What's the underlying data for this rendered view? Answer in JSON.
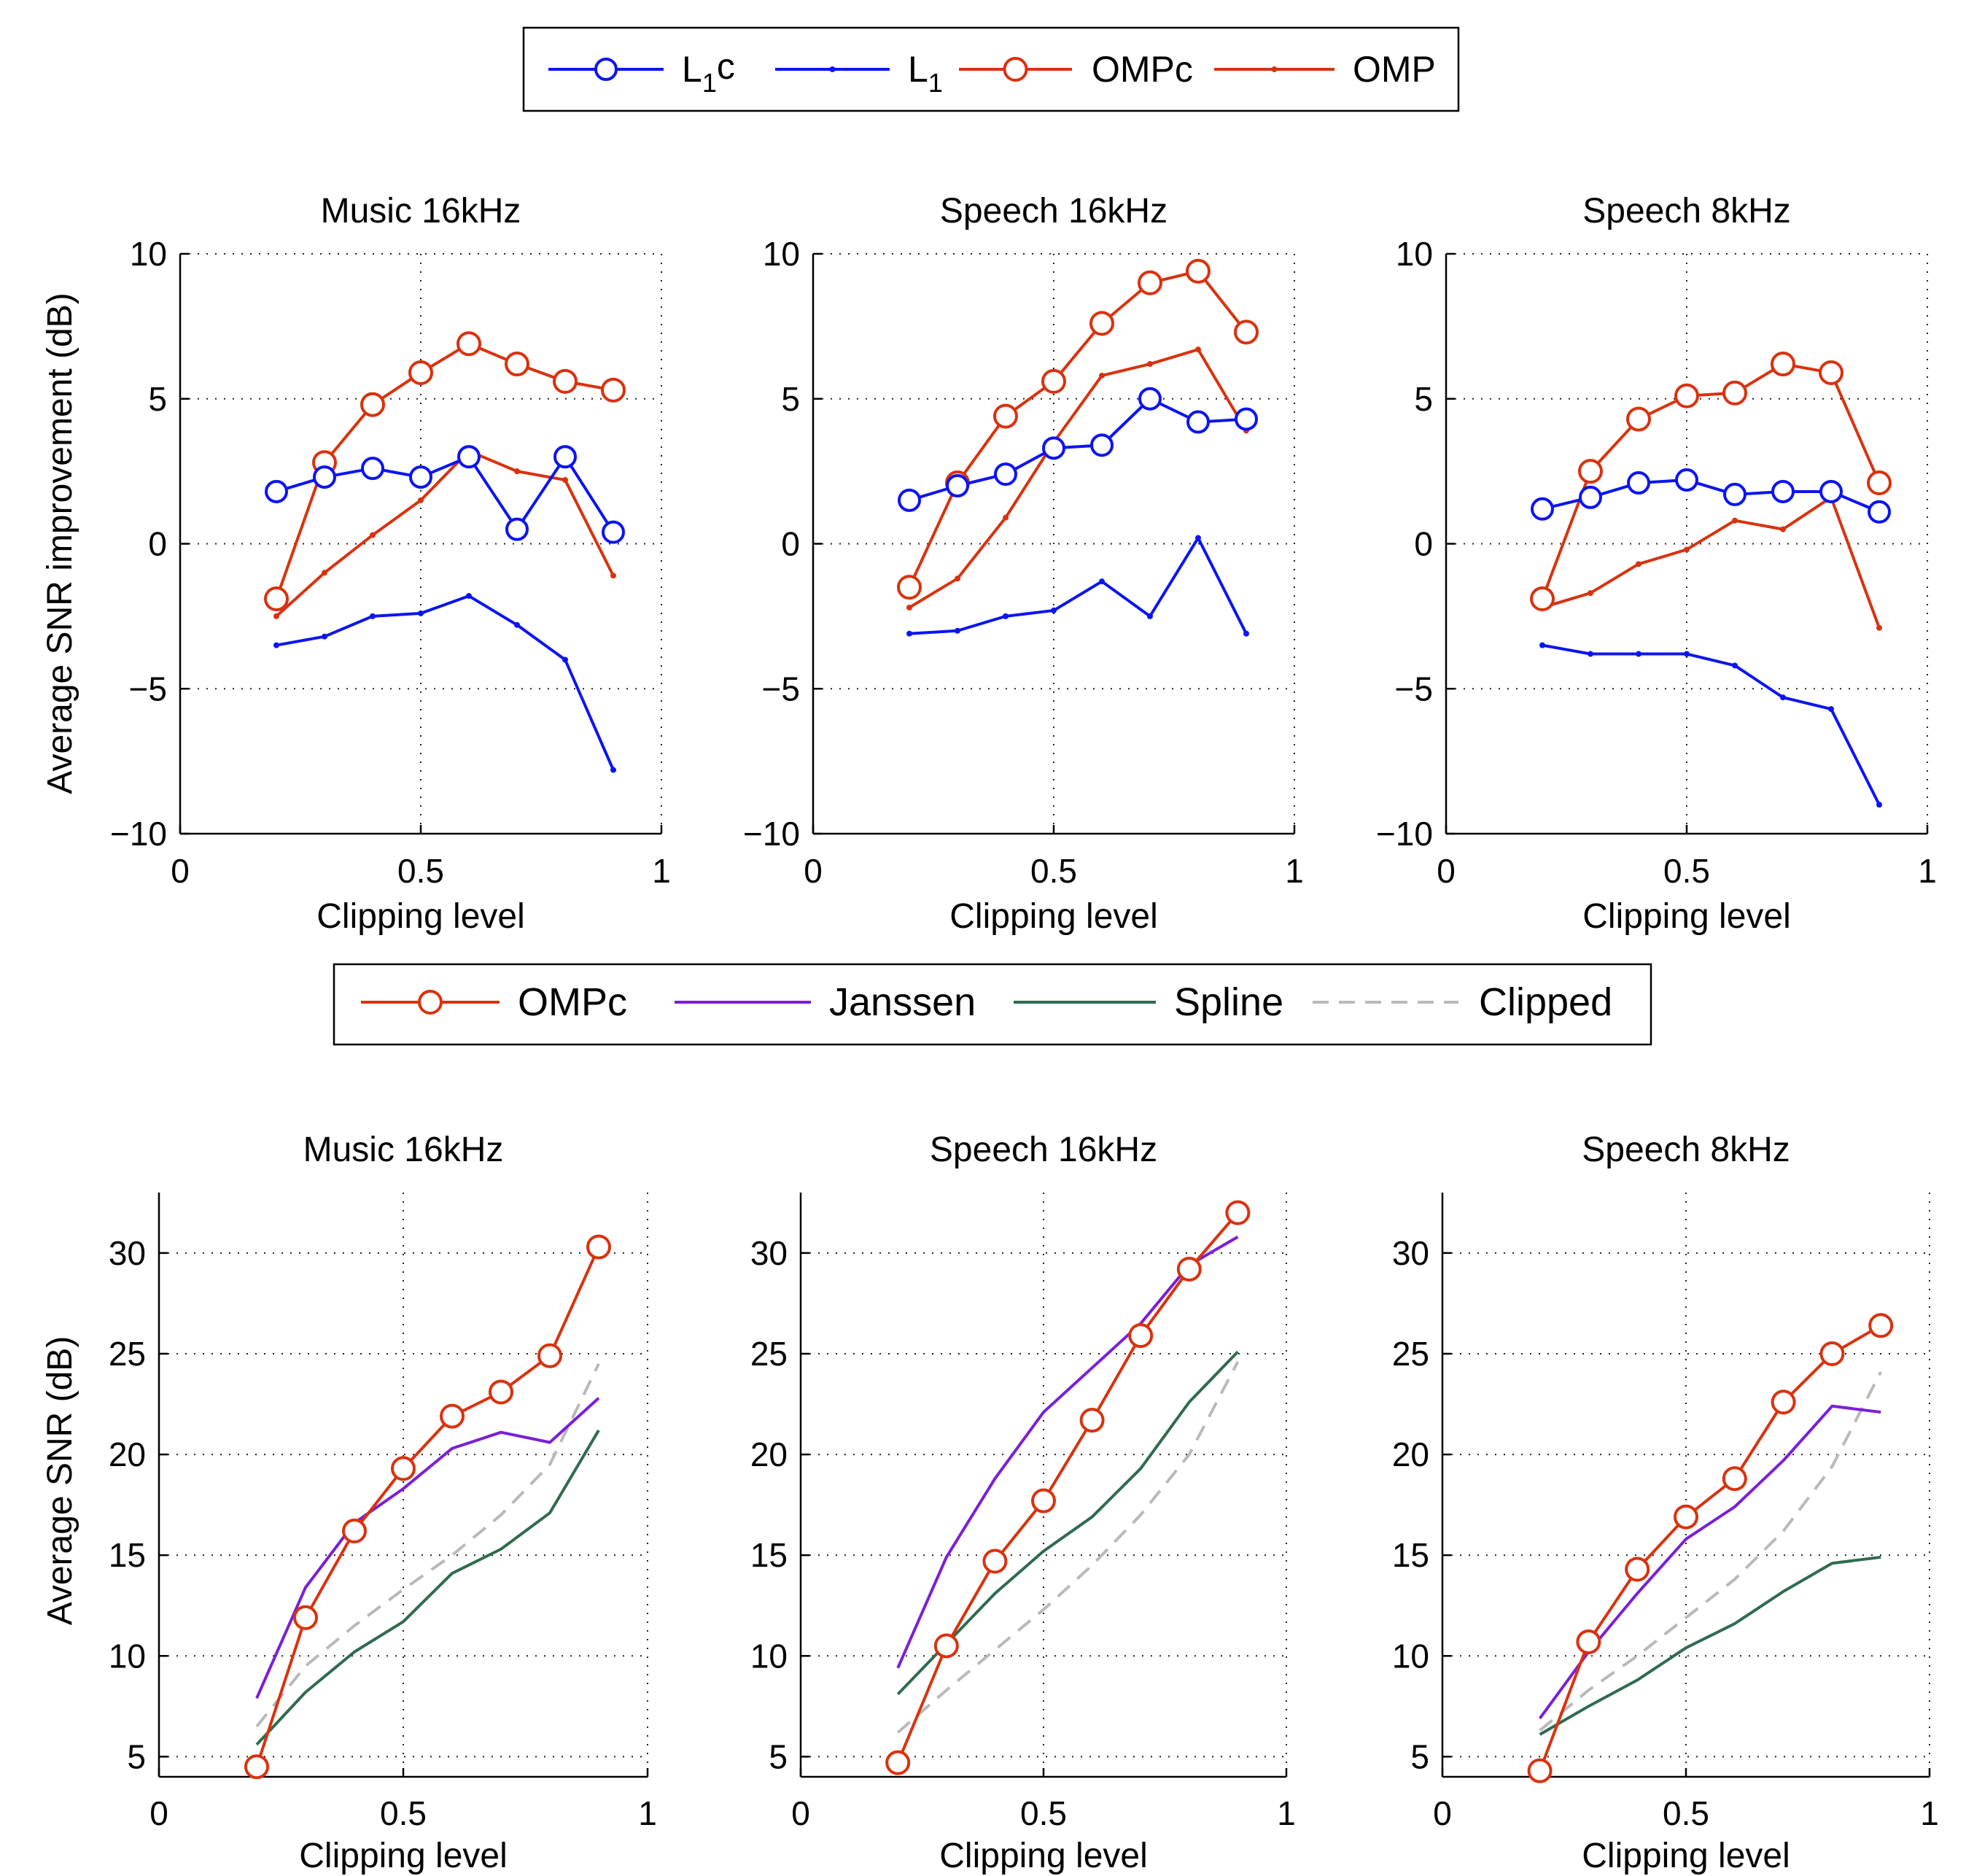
{
  "colors": {
    "l1": "#0b14f5",
    "omp": "#d9320e",
    "janssen": "#7a1fd8",
    "spline": "#2f6b4f",
    "clipped": "#b9b9b9",
    "axis": "#000000",
    "grid": "#222222"
  },
  "legend_top": {
    "entries": [
      {
        "label_main": "L",
        "label_sub": "1",
        "label_tail": "c",
        "series": "L1c"
      },
      {
        "label_main": "L",
        "label_sub": "1",
        "label_tail": "",
        "series": "L1"
      },
      {
        "label_main": "OMPc",
        "label_sub": "",
        "label_tail": "",
        "series": "OMPc"
      },
      {
        "label_main": "OMP",
        "label_sub": "",
        "label_tail": "",
        "series": "OMP"
      }
    ]
  },
  "legend_bottom": {
    "entries": [
      {
        "label_main": "OMPc",
        "series": "OMPc"
      },
      {
        "label_main": "Janssen",
        "series": "Janssen"
      },
      {
        "label_main": "Spline",
        "series": "Spline"
      },
      {
        "label_main": "Clipped",
        "series": "Clipped"
      }
    ]
  },
  "chart_data": [
    {
      "type": "line",
      "row": "top",
      "title": "Music 16kHz",
      "xlabel": "Clipping level",
      "ylabel": "Average SNR improvement (dB)",
      "xlim": [
        0,
        1
      ],
      "ylim": [
        -10,
        10
      ],
      "xticks": [
        0,
        0.5,
        1
      ],
      "xtick_labels": [
        "0",
        "0.5",
        "1"
      ],
      "yticks": [
        -10,
        -5,
        0,
        5,
        10
      ],
      "ytick_labels": [
        "−10",
        "−5",
        "0",
        "5",
        "10"
      ],
      "grid": true,
      "x": [
        0.2,
        0.3,
        0.4,
        0.5,
        0.6,
        0.7,
        0.8,
        0.9
      ],
      "series": [
        {
          "name": "L1c",
          "style": "l1-marker",
          "values": [
            1.8,
            2.3,
            2.6,
            2.3,
            3.0,
            0.5,
            3.0,
            0.4
          ]
        },
        {
          "name": "L1",
          "style": "l1-dot",
          "values": [
            -3.5,
            -3.2,
            -2.5,
            -2.4,
            -1.8,
            -2.8,
            -4.0,
            -7.8
          ]
        },
        {
          "name": "OMPc",
          "style": "omp-marker",
          "values": [
            -1.9,
            2.8,
            4.8,
            5.9,
            6.9,
            6.2,
            5.6,
            5.3
          ]
        },
        {
          "name": "OMP",
          "style": "omp-dot",
          "values": [
            -2.5,
            -1.0,
            0.3,
            1.5,
            3.2,
            2.5,
            2.2,
            -1.1
          ]
        }
      ]
    },
    {
      "type": "line",
      "row": "top",
      "title": "Speech 16kHz",
      "xlabel": "Clipping level",
      "ylabel": "",
      "xlim": [
        0,
        1
      ],
      "ylim": [
        -10,
        10
      ],
      "xticks": [
        0,
        0.5,
        1
      ],
      "xtick_labels": [
        "0",
        "0.5",
        "1"
      ],
      "yticks": [
        -10,
        -5,
        0,
        5,
        10
      ],
      "ytick_labels": [
        "−10",
        "−5",
        "0",
        "5",
        "10"
      ],
      "grid": true,
      "x": [
        0.2,
        0.3,
        0.4,
        0.5,
        0.6,
        0.7,
        0.8,
        0.9
      ],
      "series": [
        {
          "name": "L1c",
          "style": "l1-marker",
          "values": [
            1.5,
            2.0,
            2.4,
            3.3,
            3.4,
            5.0,
            4.2,
            4.3
          ]
        },
        {
          "name": "L1",
          "style": "l1-dot",
          "values": [
            -3.1,
            -3.0,
            -2.5,
            -2.3,
            -1.3,
            -2.5,
            0.2,
            -3.1
          ]
        },
        {
          "name": "OMPc",
          "style": "omp-marker",
          "values": [
            -1.5,
            2.1,
            4.4,
            5.6,
            7.6,
            9.0,
            9.4,
            7.3
          ]
        },
        {
          "name": "OMP",
          "style": "omp-dot",
          "values": [
            -2.2,
            -1.2,
            0.9,
            3.5,
            5.8,
            6.2,
            6.7,
            3.9
          ]
        }
      ]
    },
    {
      "type": "line",
      "row": "top",
      "title": "Speech 8kHz",
      "xlabel": "Clipping level",
      "ylabel": "",
      "xlim": [
        0,
        1
      ],
      "ylim": [
        -10,
        10
      ],
      "xticks": [
        0,
        0.5,
        1
      ],
      "xtick_labels": [
        "0",
        "0.5",
        "1"
      ],
      "yticks": [
        -10,
        -5,
        0,
        5,
        10
      ],
      "ytick_labels": [
        "−10",
        "−5",
        "0",
        "5",
        "10"
      ],
      "grid": true,
      "x": [
        0.2,
        0.3,
        0.4,
        0.5,
        0.6,
        0.7,
        0.8,
        0.9
      ],
      "series": [
        {
          "name": "L1c",
          "style": "l1-marker",
          "values": [
            1.2,
            1.6,
            2.1,
            2.2,
            1.7,
            1.8,
            1.8,
            1.1
          ]
        },
        {
          "name": "L1",
          "style": "l1-dot",
          "values": [
            -3.5,
            -3.8,
            -3.8,
            -3.8,
            -4.2,
            -5.3,
            -5.7,
            -9.0
          ]
        },
        {
          "name": "OMPc",
          "style": "omp-marker",
          "values": [
            -1.9,
            2.5,
            4.3,
            5.1,
            5.2,
            6.2,
            5.9,
            2.1
          ]
        },
        {
          "name": "OMP",
          "style": "omp-dot",
          "values": [
            -2.2,
            -1.7,
            -0.7,
            -0.2,
            0.8,
            0.5,
            1.6,
            -2.9
          ]
        }
      ]
    },
    {
      "type": "line",
      "row": "bottom",
      "title": "Music 16kHz",
      "xlabel": "Clipping level",
      "ylabel": "Average SNR (dB)",
      "xlim": [
        0,
        1
      ],
      "ylim": [
        4,
        33
      ],
      "xticks": [
        0,
        0.5,
        1
      ],
      "xtick_labels": [
        "0",
        "0.5",
        "1"
      ],
      "yticks": [
        5,
        10,
        15,
        20,
        25,
        30
      ],
      "ytick_labels": [
        "5",
        "10",
        "15",
        "20",
        "25",
        "30"
      ],
      "grid": true,
      "x": [
        0.2,
        0.3,
        0.4,
        0.5,
        0.6,
        0.7,
        0.8,
        0.9
      ],
      "series": [
        {
          "name": "OMPc",
          "style": "omp-marker",
          "values": [
            4.5,
            11.9,
            16.2,
            19.3,
            21.9,
            23.1,
            24.9,
            30.3
          ]
        },
        {
          "name": "Janssen",
          "style": "janssen",
          "values": [
            7.9,
            13.4,
            16.6,
            18.3,
            20.3,
            21.1,
            20.6,
            22.8
          ]
        },
        {
          "name": "Spline",
          "style": "spline",
          "values": [
            5.6,
            8.2,
            10.2,
            11.7,
            14.1,
            15.3,
            17.1,
            21.2
          ]
        },
        {
          "name": "Clipped",
          "style": "clipped",
          "values": [
            6.5,
            9.5,
            11.5,
            13.3,
            15.0,
            17.0,
            19.5,
            24.5
          ]
        }
      ]
    },
    {
      "type": "line",
      "row": "bottom",
      "title": "Speech 16kHz",
      "xlabel": "Clipping level",
      "ylabel": "",
      "xlim": [
        0,
        1
      ],
      "ylim": [
        4,
        33
      ],
      "xticks": [
        0,
        0.5,
        1
      ],
      "xtick_labels": [
        "0",
        "0.5",
        "1"
      ],
      "yticks": [
        5,
        10,
        15,
        20,
        25,
        30
      ],
      "ytick_labels": [
        "5",
        "10",
        "15",
        "20",
        "25",
        "30"
      ],
      "grid": true,
      "x": [
        0.2,
        0.3,
        0.4,
        0.5,
        0.6,
        0.7,
        0.8,
        0.9
      ],
      "series": [
        {
          "name": "OMPc",
          "style": "omp-marker",
          "values": [
            4.7,
            10.5,
            14.7,
            17.7,
            21.7,
            25.9,
            29.2,
            32.0
          ]
        },
        {
          "name": "Janssen",
          "style": "janssen",
          "values": [
            9.4,
            14.9,
            18.8,
            22.1,
            24.3,
            26.5,
            29.4,
            30.8
          ]
        },
        {
          "name": "Spline",
          "style": "spline",
          "values": [
            8.1,
            10.6,
            13.1,
            15.2,
            16.9,
            19.3,
            22.6,
            25.1
          ]
        },
        {
          "name": "Clipped",
          "style": "clipped",
          "values": [
            6.2,
            8.3,
            10.3,
            12.3,
            14.5,
            17.0,
            20.0,
            24.6
          ]
        }
      ]
    },
    {
      "type": "line",
      "row": "bottom",
      "title": "Speech 8kHz",
      "xlabel": "Clipping level",
      "ylabel": "",
      "xlim": [
        0,
        1
      ],
      "ylim": [
        4,
        33
      ],
      "xticks": [
        0,
        0.5,
        1
      ],
      "xtick_labels": [
        "0",
        "0.5",
        "1"
      ],
      "yticks": [
        5,
        10,
        15,
        20,
        25,
        30
      ],
      "ytick_labels": [
        "5",
        "10",
        "15",
        "20",
        "25",
        "30"
      ],
      "grid": true,
      "x": [
        0.2,
        0.3,
        0.4,
        0.5,
        0.6,
        0.7,
        0.8,
        0.9
      ],
      "series": [
        {
          "name": "OMPc",
          "style": "omp-marker",
          "values": [
            4.3,
            10.7,
            14.3,
            16.9,
            18.8,
            22.6,
            25.0,
            26.4
          ]
        },
        {
          "name": "Janssen",
          "style": "janssen",
          "values": [
            6.9,
            10.2,
            13.1,
            15.8,
            17.4,
            19.7,
            22.4,
            22.1
          ]
        },
        {
          "name": "Spline",
          "style": "spline",
          "values": [
            6.1,
            7.5,
            8.8,
            10.4,
            11.6,
            13.2,
            14.6,
            14.9
          ]
        },
        {
          "name": "Clipped",
          "style": "clipped",
          "values": [
            6.3,
            8.3,
            10.0,
            11.9,
            13.8,
            16.2,
            19.4,
            24.1
          ]
        }
      ]
    }
  ]
}
